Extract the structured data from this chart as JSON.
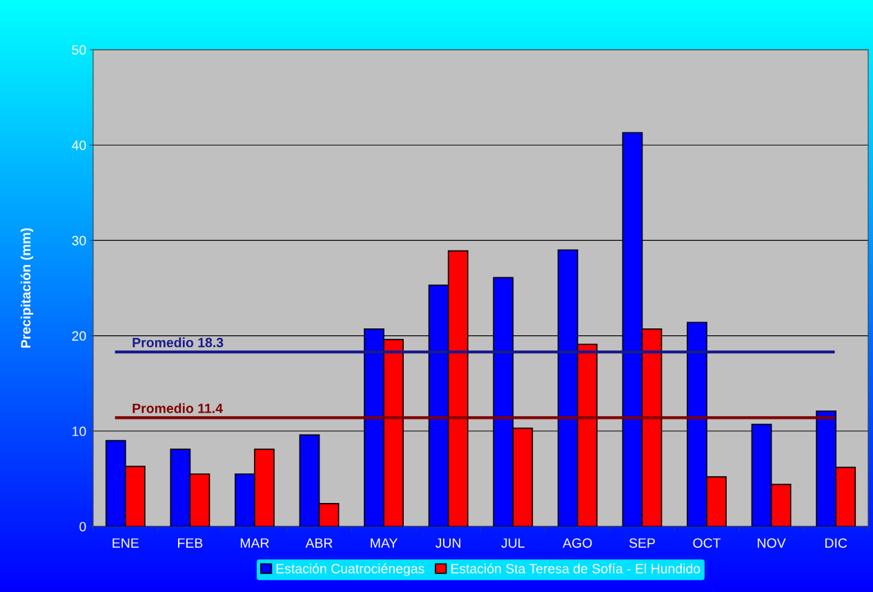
{
  "chart_data": {
    "type": "bar",
    "ylabel": "Precipitación (mm)",
    "categories": [
      "ENE",
      "FEB",
      "MAR",
      "ABR",
      "MAY",
      "JUN",
      "JUL",
      "AGO",
      "SEP",
      "OCT",
      "NOV",
      "DIC"
    ],
    "series": [
      {
        "name": "Estación Cuatrociénegas",
        "color": "#0000ff",
        "values": [
          9.0,
          8.1,
          5.5,
          9.6,
          20.7,
          25.3,
          26.1,
          29.0,
          41.3,
          21.4,
          10.7,
          12.1
        ]
      },
      {
        "name": "Estación Sta Teresa de Sofía - El Hundido",
        "color": "#ff0000",
        "values": [
          6.3,
          5.5,
          8.1,
          2.4,
          19.6,
          28.9,
          10.3,
          19.1,
          20.7,
          5.2,
          4.4,
          6.2
        ]
      }
    ],
    "ref_lines": [
      {
        "axis": "y",
        "value": 18.3,
        "label": "Promedio 18.3",
        "color": "#1a1a8c"
      },
      {
        "axis": "y",
        "value": 11.4,
        "label": "Promedio 11.4",
        "color": "#800000"
      }
    ],
    "ylim": [
      0,
      50
    ],
    "yticks": [
      0,
      10,
      20,
      30,
      40,
      50
    ],
    "grid": "y",
    "legend": "bottom"
  }
}
